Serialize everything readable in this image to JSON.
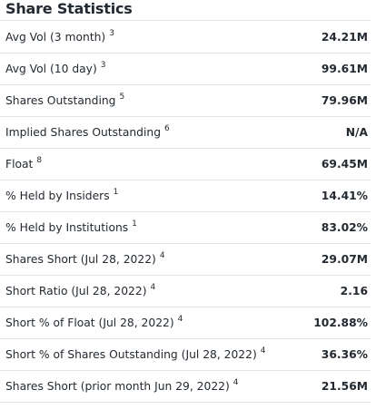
{
  "section": {
    "title": "Share Statistics"
  },
  "rows": [
    {
      "label": "Avg Vol (3 month)",
      "note": "3",
      "value": "24.21M"
    },
    {
      "label": "Avg Vol (10 day)",
      "note": "3",
      "value": "99.61M"
    },
    {
      "label": "Shares Outstanding",
      "note": "5",
      "value": "79.96M"
    },
    {
      "label": "Implied Shares Outstanding",
      "note": "6",
      "value": "N/A"
    },
    {
      "label": "Float",
      "note": "8",
      "value": "69.45M"
    },
    {
      "label": "% Held by Insiders",
      "note": "1",
      "value": "14.41%"
    },
    {
      "label": "% Held by Institutions",
      "note": "1",
      "value": "83.02%"
    },
    {
      "label": "Shares Short (Jul 28, 2022)",
      "note": "4",
      "value": "29.07M"
    },
    {
      "label": "Short Ratio (Jul 28, 2022)",
      "note": "4",
      "value": "2.16"
    },
    {
      "label": "Short % of Float (Jul 28, 2022)",
      "note": "4",
      "value": "102.88%"
    },
    {
      "label": "Short % of Shares Outstanding (Jul 28, 2022)",
      "note": "4",
      "value": "36.36%"
    },
    {
      "label": "Shares Short (prior month Jun 29, 2022)",
      "note": "4",
      "value": "21.56M"
    }
  ]
}
